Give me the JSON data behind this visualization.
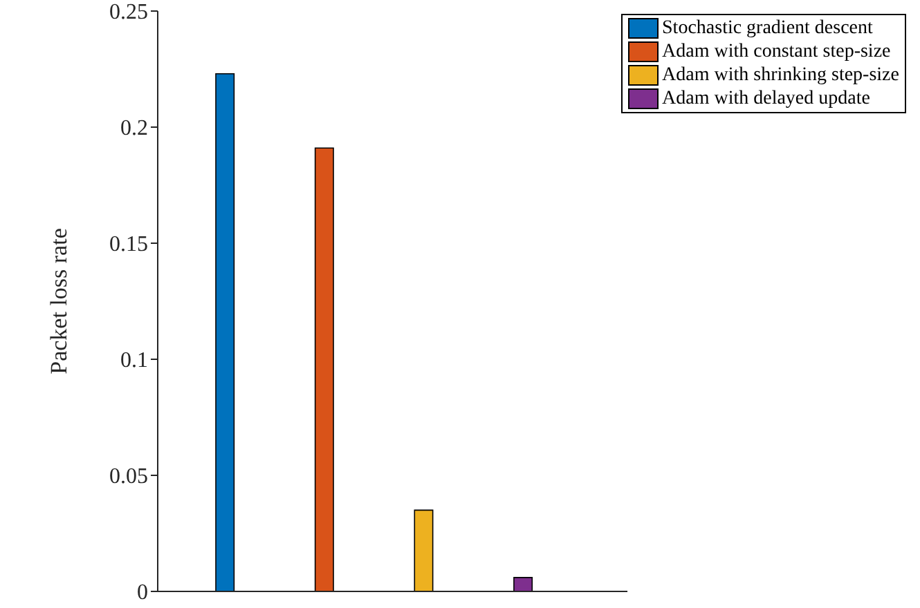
{
  "chart_data": {
    "type": "bar",
    "ylabel": "Packet loss rate",
    "categories": [
      null,
      null,
      null,
      null
    ],
    "series": [
      {
        "name": "Stochastic gradient descent",
        "color": "#0072bd",
        "values": [
          0.223,
          null,
          null,
          null
        ]
      },
      {
        "name": "Adam with constant step-size",
        "color": "#d95319",
        "values": [
          null,
          0.191,
          null,
          null
        ]
      },
      {
        "name": "Adam with shrinking step-size",
        "color": "#edb120",
        "values": [
          null,
          null,
          0.035,
          null
        ]
      },
      {
        "name": "Adam with delayed update",
        "color": "#7e2f8e",
        "values": [
          null,
          null,
          null,
          0.006
        ]
      }
    ],
    "ylim": [
      0,
      0.25
    ],
    "yticks": [
      0,
      0.05,
      0.1,
      0.15,
      0.2,
      0.25
    ],
    "grid": false,
    "legend": "top right"
  }
}
